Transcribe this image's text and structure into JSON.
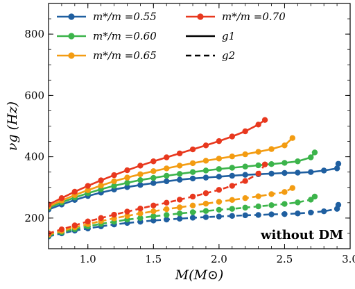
{
  "chart_data": {
    "type": "line",
    "xlabel": "M(M⊙)",
    "ylabel": "νg (Hz)",
    "xlim": [
      0.7,
      3.0
    ],
    "ylim": [
      100,
      900
    ],
    "xticks": [
      1.0,
      1.5,
      2.0,
      2.5,
      3.0
    ],
    "xtick_labels": [
      "1.0",
      "1.5",
      "2.0",
      "2.5",
      "3.0"
    ],
    "yticks": [
      200,
      400,
      600,
      800
    ],
    "ytick_labels": [
      "200",
      "400",
      "600",
      "800"
    ],
    "annotation": "without DM",
    "legend": {
      "placement": "top-left",
      "entries": [
        {
          "label": "m*/m =0.55",
          "color": "#1f5fa0",
          "style": "marker-line"
        },
        {
          "label": "m*/m =0.60",
          "color": "#3cb44b",
          "style": "marker-line"
        },
        {
          "label": "m*/m =0.65",
          "color": "#f39c12",
          "style": "marker-line"
        },
        {
          "label": "m*/m =0.70",
          "color": "#e8381e",
          "style": "marker-line"
        },
        {
          "label": "g1",
          "color": "#000000",
          "style": "solid"
        },
        {
          "label": "g2",
          "color": "#000000",
          "style": "dashed"
        }
      ]
    },
    "series": [
      {
        "name": "m*/m =0.55 g1",
        "color": "#1f5fa0",
        "dash": false,
        "x": [
          0.7,
          0.8,
          0.9,
          1.0,
          1.1,
          1.2,
          1.3,
          1.4,
          1.5,
          1.6,
          1.7,
          1.8,
          1.9,
          2.0,
          2.1,
          2.2,
          2.3,
          2.4,
          2.5,
          2.6,
          2.7,
          2.8,
          2.9,
          2.91
        ],
        "y": [
          228,
          244,
          259,
          272,
          283,
          293,
          301,
          308,
          314,
          320,
          325,
          329,
          332,
          335,
          338,
          341,
          343,
          345,
          347,
          348,
          350,
          355,
          362,
          377
        ]
      },
      {
        "name": "m*/m =0.60 g1",
        "color": "#3cb44b",
        "dash": false,
        "x": [
          0.7,
          0.8,
          0.9,
          1.0,
          1.1,
          1.2,
          1.3,
          1.4,
          1.5,
          1.6,
          1.7,
          1.8,
          1.9,
          2.0,
          2.1,
          2.2,
          2.3,
          2.4,
          2.5,
          2.6,
          2.7,
          2.73
        ],
        "y": [
          234,
          251,
          267,
          281,
          294,
          305,
          315,
          324,
          331,
          338,
          344,
          350,
          355,
          360,
          364,
          368,
          372,
          376,
          380,
          385,
          398,
          414
        ]
      },
      {
        "name": "m*/m =0.65 g1",
        "color": "#f39c12",
        "dash": false,
        "x": [
          0.7,
          0.8,
          0.9,
          1.0,
          1.1,
          1.2,
          1.3,
          1.4,
          1.5,
          1.6,
          1.7,
          1.8,
          1.9,
          2.0,
          2.1,
          2.2,
          2.3,
          2.4,
          2.5,
          2.56
        ],
        "y": [
          238,
          257,
          275,
          291,
          306,
          320,
          332,
          343,
          353,
          362,
          371,
          379,
          387,
          394,
          401,
          408,
          416,
          425,
          437,
          461
        ]
      },
      {
        "name": "m*/m =0.70 g1",
        "color": "#e8381e",
        "dash": false,
        "x": [
          0.7,
          0.8,
          0.9,
          1.0,
          1.1,
          1.2,
          1.3,
          1.4,
          1.5,
          1.6,
          1.7,
          1.8,
          1.9,
          2.0,
          2.1,
          2.2,
          2.3,
          2.35
        ],
        "y": [
          244,
          265,
          286,
          305,
          323,
          340,
          356,
          371,
          385,
          398,
          411,
          424,
          437,
          451,
          466,
          483,
          505,
          520
        ]
      },
      {
        "name": "m*/m =0.55 g2",
        "color": "#1f5fa0",
        "dash": true,
        "x": [
          0.7,
          0.8,
          0.9,
          1.0,
          1.1,
          1.2,
          1.3,
          1.4,
          1.5,
          1.6,
          1.7,
          1.8,
          1.9,
          2.0,
          2.1,
          2.2,
          2.3,
          2.4,
          2.5,
          2.6,
          2.7,
          2.8,
          2.9,
          2.91
        ],
        "y": [
          140,
          150,
          159,
          166,
          173,
          179,
          184,
          188,
          192,
          195,
          198,
          201,
          203,
          205,
          207,
          209,
          210,
          212,
          213,
          215,
          218,
          222,
          230,
          243
        ]
      },
      {
        "name": "m*/m =0.60 g2",
        "color": "#3cb44b",
        "dash": true,
        "x": [
          0.7,
          0.8,
          0.9,
          1.0,
          1.1,
          1.2,
          1.3,
          1.4,
          1.5,
          1.6,
          1.7,
          1.8,
          1.9,
          2.0,
          2.1,
          2.2,
          2.3,
          2.4,
          2.5,
          2.6,
          2.7,
          2.73
        ],
        "y": [
          143,
          154,
          164,
          173,
          181,
          188,
          195,
          200,
          206,
          210,
          215,
          219,
          223,
          227,
          230,
          234,
          238,
          242,
          246,
          251,
          260,
          270
        ]
      },
      {
        "name": "m*/m =0.65 g2",
        "color": "#f39c12",
        "dash": true,
        "x": [
          0.7,
          0.8,
          0.9,
          1.0,
          1.1,
          1.2,
          1.3,
          1.4,
          1.5,
          1.6,
          1.7,
          1.8,
          1.9,
          2.0,
          2.1,
          2.2,
          2.3,
          2.4,
          2.5,
          2.56
        ],
        "y": [
          146,
          158,
          170,
          180,
          190,
          199,
          207,
          215,
          222,
          229,
          235,
          241,
          247,
          253,
          259,
          265,
          271,
          278,
          285,
          298
        ]
      },
      {
        "name": "m*/m =0.70 g2",
        "color": "#e8381e",
        "dash": true,
        "x": [
          0.7,
          0.8,
          0.9,
          1.0,
          1.1,
          1.2,
          1.3,
          1.4,
          1.5,
          1.6,
          1.7,
          1.8,
          1.9,
          2.0,
          2.1,
          2.2,
          2.3,
          2.35
        ],
        "y": [
          150,
          163,
          176,
          189,
          200,
          211,
          221,
          231,
          241,
          250,
          260,
          270,
          281,
          292,
          305,
          321,
          345,
          375
        ]
      }
    ]
  }
}
